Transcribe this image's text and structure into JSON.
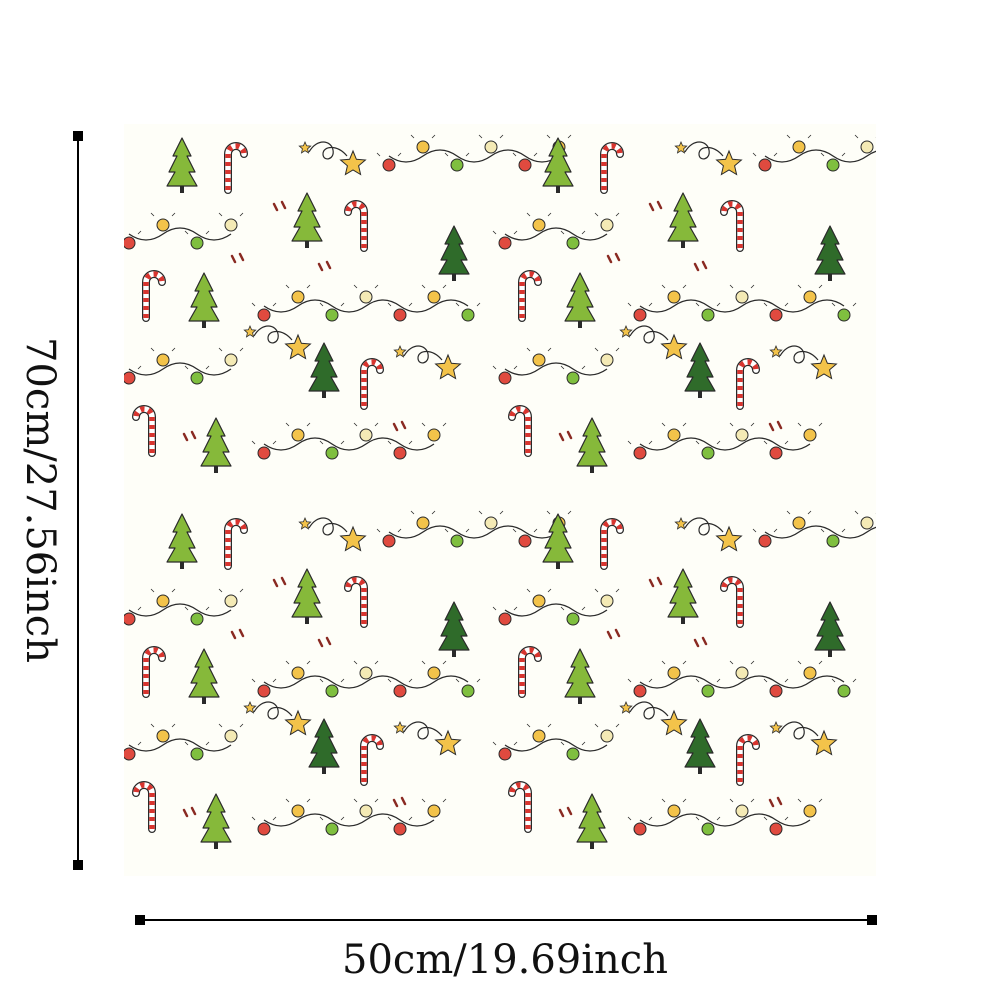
{
  "dimensions": {
    "height_label": "70cm/27.56inch",
    "width_label": "50cm/19.69inch"
  },
  "pattern": {
    "motifs": [
      "christmas-tree-icon",
      "candy-cane-icon",
      "string-lights-icon",
      "star-icon"
    ],
    "colors": {
      "background": "#fefef8",
      "tree_light": "#86b93a",
      "tree_dark": "#2f6b2a",
      "candy_red": "#d8352f",
      "bulb_red": "#e04a3f",
      "bulb_green": "#7fbf3f",
      "bulb_yellow": "#f3c34a",
      "bulb_cream": "#f4eab5",
      "star": "#f3c34a",
      "outline": "#2a2a2a",
      "dash": "#8a2a22"
    }
  }
}
